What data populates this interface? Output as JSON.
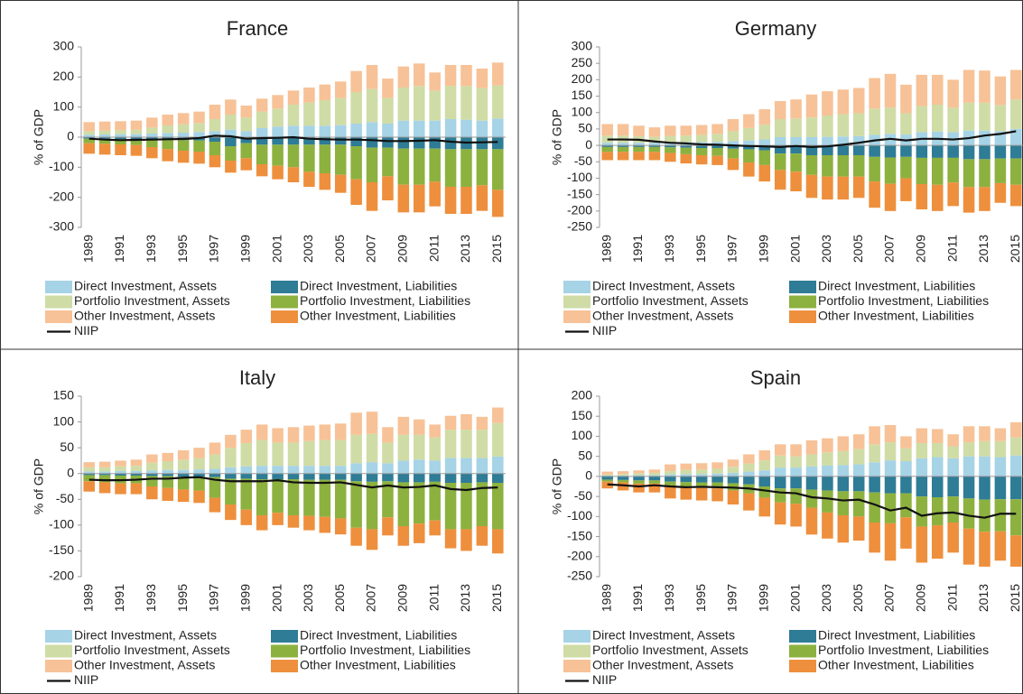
{
  "chart_data": [
    {
      "type": "bar",
      "stacked": true,
      "title": "France",
      "y_label": "% of GDP",
      "categories": [
        "1989",
        null,
        "1991",
        null,
        "1993",
        null,
        "1995",
        null,
        "1997",
        null,
        "1999",
        null,
        "2001",
        null,
        "2003",
        null,
        "2005",
        null,
        "2007",
        null,
        "2009",
        null,
        "2011",
        null,
        "2013",
        null,
        "2015"
      ],
      "ylim": [
        -300,
        300
      ],
      "yticks": [
        -300,
        -200,
        -100,
        0,
        100,
        200,
        300
      ],
      "series": [
        {
          "name": "Direct Investment, Assets",
          "color": "#a6d3e6",
          "values": [
            8,
            9,
            10,
            10,
            12,
            14,
            15,
            17,
            20,
            25,
            20,
            30,
            35,
            38,
            38,
            38,
            40,
            45,
            50,
            45,
            55,
            55,
            55,
            60,
            58,
            55,
            62
          ]
        },
        {
          "name": "Direct Investment, Liabilities",
          "color": "#2e7c96",
          "values": [
            -5,
            -5,
            -6,
            -6,
            -8,
            -10,
            -10,
            -11,
            -15,
            -30,
            -20,
            -25,
            -25,
            -25,
            -25,
            -25,
            -25,
            -30,
            -35,
            -35,
            -38,
            -38,
            -38,
            -40,
            -40,
            -40,
            -40
          ]
        },
        {
          "name": "Portfolio Investment, Assets",
          "color": "#cfdca6",
          "values": [
            12,
            13,
            13,
            15,
            20,
            25,
            28,
            30,
            40,
            50,
            45,
            55,
            60,
            70,
            77,
            85,
            90,
            105,
            110,
            85,
            110,
            115,
            100,
            110,
            112,
            108,
            110
          ]
        },
        {
          "name": "Portfolio Investment, Liabilities",
          "color": "#8db13f",
          "values": [
            -15,
            -17,
            -18,
            -20,
            -25,
            -30,
            -35,
            -37,
            -45,
            -48,
            -50,
            -65,
            -70,
            -75,
            -90,
            -95,
            -100,
            -110,
            -115,
            -95,
            -120,
            -120,
            -110,
            -125,
            -125,
            -120,
            -135
          ]
        },
        {
          "name": "Other Investment, Assets",
          "color": "#f7c297",
          "values": [
            30,
            30,
            30,
            30,
            33,
            36,
            37,
            38,
            48,
            50,
            40,
            43,
            45,
            47,
            50,
            52,
            55,
            70,
            80,
            65,
            70,
            75,
            60,
            70,
            70,
            65,
            76
          ]
        },
        {
          "name": "Other Investment, Liabilities",
          "color": "#ee8f3d",
          "values": [
            -35,
            -36,
            -36,
            -36,
            -37,
            -40,
            -40,
            -40,
            -40,
            -40,
            -40,
            -40,
            -45,
            -50,
            -50,
            -55,
            -60,
            -85,
            -95,
            -80,
            -92,
            -92,
            -82,
            -90,
            -90,
            -85,
            -90
          ]
        },
        {
          "name": "NIIP",
          "color": "#111111",
          "type": "line",
          "values": [
            -5,
            -8,
            -10,
            -9,
            -8,
            -7,
            -6,
            -3,
            5,
            3,
            -5,
            -3,
            -2,
            0,
            -5,
            -7,
            -8,
            -8,
            -10,
            -13,
            -13,
            -12,
            -10,
            -15,
            -18,
            -17,
            -16
          ]
        }
      ]
    },
    {
      "type": "bar",
      "stacked": true,
      "title": "Germany",
      "y_label": "% of GDP",
      "categories": [
        "1989",
        null,
        "1991",
        null,
        "1993",
        null,
        "1995",
        null,
        "1997",
        null,
        "1999",
        null,
        "2001",
        null,
        "2003",
        null,
        "2005",
        null,
        "2007",
        null,
        "2009",
        null,
        "2011",
        null,
        "2013",
        null,
        "2015"
      ],
      "ylim": [
        -250,
        300
      ],
      "yticks": [
        -250,
        -200,
        -150,
        -100,
        -50,
        0,
        50,
        100,
        150,
        200,
        250,
        300
      ],
      "series": [
        {
          "name": "Direct Investment, Assets",
          "color": "#a6d3e6",
          "values": [
            8,
            8,
            8,
            8,
            9,
            10,
            10,
            11,
            13,
            15,
            18,
            25,
            25,
            25,
            26,
            27,
            28,
            32,
            35,
            33,
            40,
            42,
            40,
            45,
            45,
            43,
            50
          ]
        },
        {
          "name": "Direct Investment, Liabilities",
          "color": "#2e7c96",
          "values": [
            -5,
            -5,
            -5,
            -5,
            -6,
            -7,
            -8,
            -8,
            -10,
            -12,
            -15,
            -25,
            -25,
            -30,
            -30,
            -30,
            -30,
            -35,
            -37,
            -35,
            -38,
            -38,
            -38,
            -42,
            -42,
            -40,
            -40
          ]
        },
        {
          "name": "Portfolio Investment, Assets",
          "color": "#cfdca6",
          "values": [
            22,
            22,
            20,
            18,
            20,
            20,
            22,
            24,
            30,
            38,
            45,
            55,
            57,
            60,
            65,
            68,
            70,
            80,
            80,
            65,
            80,
            82,
            75,
            85,
            85,
            80,
            90
          ]
        },
        {
          "name": "Portfolio Investment, Liabilities",
          "color": "#8db13f",
          "values": [
            -15,
            -15,
            -15,
            -15,
            -17,
            -20,
            -22,
            -24,
            -30,
            -40,
            -45,
            -50,
            -55,
            -60,
            -65,
            -65,
            -65,
            -75,
            -80,
            -65,
            -80,
            -82,
            -75,
            -85,
            -85,
            -75,
            -80
          ]
        },
        {
          "name": "Other Investment, Assets",
          "color": "#f7c297",
          "values": [
            35,
            35,
            32,
            29,
            31,
            30,
            30,
            30,
            37,
            42,
            47,
            55,
            58,
            70,
            74,
            75,
            77,
            93,
            103,
            87,
            95,
            91,
            85,
            100,
            98,
            87,
            90
          ]
        },
        {
          "name": "Other Investment, Liabilities",
          "color": "#ee8f3d",
          "values": [
            -25,
            -25,
            -25,
            -25,
            -27,
            -28,
            -28,
            -28,
            -35,
            -43,
            -50,
            -60,
            -60,
            -70,
            -70,
            -70,
            -65,
            -80,
            -83,
            -70,
            -77,
            -80,
            -72,
            -78,
            -73,
            -60,
            -65
          ]
        },
        {
          "name": "NIIP",
          "color": "#111111",
          "type": "line",
          "values": [
            18,
            18,
            17,
            12,
            8,
            6,
            3,
            2,
            0,
            -2,
            -3,
            -5,
            -2,
            -5,
            -3,
            2,
            8,
            15,
            20,
            15,
            20,
            20,
            18,
            22,
            30,
            35,
            43
          ]
        }
      ]
    },
    {
      "type": "bar",
      "stacked": true,
      "title": "Italy",
      "y_label": "% of GDP",
      "categories": [
        "1989",
        null,
        "1991",
        null,
        "1993",
        null,
        "1995",
        null,
        "1997",
        null,
        "1999",
        null,
        "2001",
        null,
        "2003",
        null,
        "2005",
        null,
        "2007",
        null,
        "2009",
        null,
        "2011",
        null,
        "2013",
        null,
        "2015"
      ],
      "ylim": [
        -200,
        150
      ],
      "yticks": [
        -200,
        -150,
        -100,
        -50,
        0,
        50,
        100,
        150
      ],
      "series": [
        {
          "name": "Direct Investment, Assets",
          "color": "#a6d3e6",
          "values": [
            4,
            4,
            5,
            5,
            6,
            7,
            7,
            8,
            9,
            12,
            14,
            15,
            15,
            15,
            15,
            15,
            15,
            20,
            22,
            20,
            25,
            27,
            25,
            30,
            30,
            30,
            33
          ]
        },
        {
          "name": "Direct Investment, Liabilities",
          "color": "#2e7c96",
          "values": [
            -3,
            -3,
            -4,
            -4,
            -5,
            -5,
            -6,
            -6,
            -7,
            -10,
            -10,
            -11,
            -11,
            -11,
            -12,
            -12,
            -12,
            -15,
            -16,
            -15,
            -17,
            -17,
            -16,
            -18,
            -18,
            -17,
            -18
          ]
        },
        {
          "name": "Portfolio Investment, Assets",
          "color": "#cfdca6",
          "values": [
            8,
            8,
            9,
            10,
            15,
            17,
            20,
            22,
            28,
            38,
            45,
            50,
            45,
            45,
            48,
            50,
            50,
            55,
            55,
            40,
            50,
            48,
            45,
            55,
            55,
            55,
            65
          ]
        },
        {
          "name": "Portfolio Investment, Liabilities",
          "color": "#8db13f",
          "values": [
            -12,
            -14,
            -15,
            -15,
            -20,
            -23,
            -25,
            -27,
            -40,
            -50,
            -60,
            -70,
            -65,
            -70,
            -70,
            -72,
            -75,
            -90,
            -92,
            -70,
            -85,
            -80,
            -75,
            -90,
            -90,
            -85,
            -90
          ]
        },
        {
          "name": "Other Investment, Assets",
          "color": "#f7c297",
          "values": [
            10,
            11,
            11,
            12,
            16,
            16,
            18,
            20,
            23,
            25,
            26,
            30,
            28,
            30,
            30,
            30,
            32,
            43,
            43,
            30,
            35,
            30,
            25,
            27,
            30,
            25,
            30
          ]
        },
        {
          "name": "Other Investment, Liabilities",
          "color": "#ee8f3d",
          "values": [
            -20,
            -21,
            -21,
            -21,
            -25,
            -25,
            -24,
            -24,
            -28,
            -30,
            -30,
            -29,
            -24,
            -24,
            -28,
            -31,
            -31,
            -35,
            -40,
            -35,
            -38,
            -38,
            -29,
            -37,
            -42,
            -38,
            -47
          ]
        },
        {
          "name": "NIIP",
          "color": "#111111",
          "type": "line",
          "values": [
            -12,
            -13,
            -13,
            -12,
            -10,
            -10,
            -8,
            -7,
            -12,
            -15,
            -15,
            -15,
            -13,
            -17,
            -18,
            -18,
            -17,
            -22,
            -27,
            -23,
            -27,
            -26,
            -23,
            -30,
            -32,
            -28,
            -27
          ]
        }
      ]
    },
    {
      "type": "bar",
      "stacked": true,
      "title": "Spain",
      "y_label": "% of GDP",
      "categories": [
        "1989",
        null,
        "1991",
        null,
        "1993",
        null,
        "1995",
        null,
        "1997",
        null,
        "1999",
        null,
        "2001",
        null,
        "2003",
        null,
        "2005",
        null,
        "2007",
        null,
        "2009",
        null,
        "2011",
        null,
        "2013",
        null,
        "2015"
      ],
      "ylim": [
        -250,
        200
      ],
      "yticks": [
        -250,
        -200,
        -150,
        -100,
        -50,
        0,
        50,
        100,
        150,
        200
      ],
      "series": [
        {
          "name": "Direct Investment, Assets",
          "color": "#a6d3e6",
          "values": [
            2,
            2,
            3,
            3,
            5,
            6,
            6,
            7,
            9,
            12,
            15,
            22,
            22,
            25,
            27,
            28,
            30,
            35,
            40,
            38,
            45,
            48,
            45,
            50,
            50,
            48,
            52
          ]
        },
        {
          "name": "Direct Investment, Liabilities",
          "color": "#2e7c96",
          "values": [
            -8,
            -9,
            -10,
            -10,
            -13,
            -14,
            -15,
            -15,
            -17,
            -20,
            -25,
            -30,
            -30,
            -33,
            -35,
            -37,
            -37,
            -40,
            -42,
            -42,
            -50,
            -52,
            -50,
            -55,
            -58,
            -57,
            -57
          ]
        },
        {
          "name": "Portfolio Investment, Assets",
          "color": "#cfdca6",
          "values": [
            3,
            4,
            5,
            6,
            8,
            10,
            11,
            12,
            15,
            20,
            25,
            30,
            28,
            30,
            33,
            35,
            38,
            45,
            45,
            32,
            38,
            35,
            30,
            35,
            38,
            40,
            45
          ]
        },
        {
          "name": "Portfolio Investment, Liabilities",
          "color": "#8db13f",
          "values": [
            -5,
            -6,
            -8,
            -8,
            -12,
            -13,
            -14,
            -15,
            -18,
            -22,
            -28,
            -35,
            -38,
            -45,
            -55,
            -60,
            -63,
            -75,
            -75,
            -60,
            -75,
            -70,
            -65,
            -75,
            -80,
            -80,
            -90
          ]
        },
        {
          "name": "Other Investment, Assets",
          "color": "#f7c297",
          "values": [
            7,
            7,
            7,
            8,
            17,
            16,
            16,
            16,
            18,
            23,
            25,
            28,
            30,
            35,
            35,
            37,
            37,
            45,
            43,
            30,
            37,
            35,
            30,
            40,
            37,
            32,
            38
          ]
        },
        {
          "name": "Other Investment, Liabilities",
          "color": "#ee8f3d",
          "values": [
            -17,
            -20,
            -22,
            -22,
            -30,
            -31,
            -31,
            -32,
            -35,
            -43,
            -47,
            -55,
            -57,
            -67,
            -65,
            -68,
            -60,
            -75,
            -93,
            -78,
            -90,
            -83,
            -75,
            -90,
            -87,
            -73,
            -78
          ]
        },
        {
          "name": "NIIP",
          "color": "#111111",
          "type": "line",
          "values": [
            -20,
            -22,
            -25,
            -22,
            -25,
            -27,
            -26,
            -27,
            -28,
            -30,
            -35,
            -40,
            -42,
            -52,
            -55,
            -60,
            -58,
            -70,
            -85,
            -78,
            -98,
            -92,
            -90,
            -98,
            -103,
            -93,
            -93
          ]
        }
      ]
    }
  ]
}
